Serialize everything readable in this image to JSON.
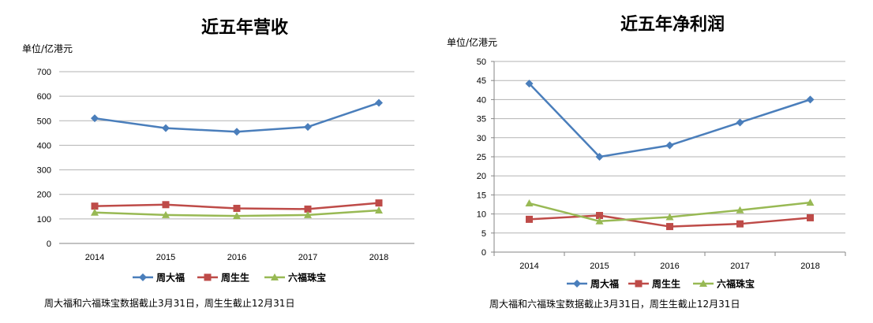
{
  "chart_data": [
    {
      "type": "line",
      "title": "近五年营收",
      "ylabel": "单位/亿港元",
      "xlabel": "",
      "categories": [
        "2014",
        "2015",
        "2016",
        "2017",
        "2018"
      ],
      "ylim": [
        0,
        700
      ],
      "yticks": [
        0,
        100,
        200,
        300,
        400,
        500,
        600,
        700
      ],
      "grid": true,
      "legend_position": "bottom",
      "series": [
        {
          "name": "周大福",
          "color": "#4A7EBB",
          "marker": "diamond",
          "values": [
            510,
            470,
            455,
            475,
            573
          ]
        },
        {
          "name": "周生生",
          "color": "#BE4B48",
          "marker": "square",
          "values": [
            152,
            158,
            143,
            140,
            165
          ]
        },
        {
          "name": "六福珠宝",
          "color": "#98B954",
          "marker": "triangle",
          "values": [
            126,
            116,
            112,
            116,
            135
          ]
        }
      ],
      "note": "周大福和六福珠宝数据截止3月31日，周生生截止12月31日"
    },
    {
      "type": "line",
      "title": "近五年净利润",
      "ylabel": "单位/亿港元",
      "xlabel": "",
      "categories": [
        "2014",
        "2015",
        "2016",
        "2017",
        "2018"
      ],
      "ylim": [
        0,
        50
      ],
      "yticks": [
        0,
        5,
        10,
        15,
        20,
        25,
        30,
        35,
        40,
        45,
        50
      ],
      "grid": true,
      "legend_position": "bottom",
      "series": [
        {
          "name": "周大福",
          "color": "#4A7EBB",
          "marker": "diamond",
          "values": [
            44.2,
            25,
            28,
            34,
            40
          ]
        },
        {
          "name": "周生生",
          "color": "#BE4B48",
          "marker": "square",
          "values": [
            8.6,
            9.6,
            6.7,
            7.4,
            9
          ]
        },
        {
          "name": "六福珠宝",
          "color": "#98B954",
          "marker": "triangle",
          "values": [
            12.8,
            8.1,
            9.2,
            11,
            13
          ]
        }
      ],
      "note": "周大福和六福珠宝数据截止3月31日，周生生截止12月31日"
    }
  ]
}
